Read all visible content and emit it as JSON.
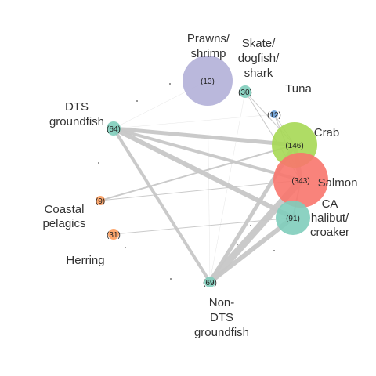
{
  "colors": {
    "purple": "#b3b0d8",
    "teal": "#7fcdbb",
    "green": "#a6d854",
    "salmon": "#f8766d",
    "orange": "#fc9d5e",
    "blue": "#6a9fd6",
    "edge": "#c8c8c8",
    "dot": "#777777"
  },
  "nodes": [
    {
      "id": "prawns",
      "label": [
        "Prawns/",
        "shrimp"
      ],
      "count": "(13)",
      "color": "purple"
    },
    {
      "id": "skate",
      "label": [
        "Skate/",
        "dogfish/",
        "shark"
      ],
      "count": "(30)",
      "color": "teal"
    },
    {
      "id": "tuna",
      "label": [
        "Tuna"
      ],
      "count": "(12)",
      "color": "blue"
    },
    {
      "id": "dts",
      "label": [
        "DTS",
        "groundfish"
      ],
      "count": "(64)",
      "color": "teal"
    },
    {
      "id": "crab",
      "label": [
        "Crab"
      ],
      "count": "(146)",
      "color": "green"
    },
    {
      "id": "salmon",
      "label": [
        "Salmon"
      ],
      "count": "(343)",
      "color": "salmon"
    },
    {
      "id": "ca",
      "label": [
        "CA",
        "halibut/",
        "croaker"
      ],
      "count": "(91)",
      "color": "teal"
    },
    {
      "id": "coastal",
      "label": [
        "Coastal",
        "pelagics"
      ],
      "count": "(9)",
      "color": "orange"
    },
    {
      "id": "unk31",
      "label": [],
      "count": "(31)",
      "color": "orange"
    },
    {
      "id": "herring",
      "label": [
        "Herring"
      ],
      "count": "",
      "color": "dot"
    },
    {
      "id": "nondts",
      "label": [
        "Non-",
        "DTS",
        "groundfish"
      ],
      "count": "(69)",
      "color": "teal"
    }
  ],
  "edges": [
    {
      "source": "nondts",
      "target": "salmon",
      "weight": 9
    },
    {
      "source": "nondts",
      "target": "ca",
      "weight": 6
    },
    {
      "source": "nondts",
      "target": "crab",
      "weight": 5
    },
    {
      "source": "dts",
      "target": "ca",
      "weight": 6
    },
    {
      "source": "dts",
      "target": "crab",
      "weight": 5
    },
    {
      "source": "dts",
      "target": "salmon",
      "weight": 4
    },
    {
      "source": "dts",
      "target": "nondts",
      "weight": 4
    },
    {
      "source": "crab",
      "target": "salmon",
      "weight": 6
    },
    {
      "source": "coastal",
      "target": "crab",
      "weight": 2
    },
    {
      "source": "coastal",
      "target": "salmon",
      "weight": 1
    },
    {
      "source": "unk31",
      "target": "ca",
      "weight": 1
    },
    {
      "source": "skate",
      "target": "salmon",
      "weight": 1
    },
    {
      "source": "skate",
      "target": "crab",
      "weight": 1
    },
    {
      "source": "tuna",
      "target": "salmon",
      "weight": 1
    },
    {
      "source": "tuna",
      "target": "crab",
      "weight": 1
    },
    {
      "source": "prawns",
      "target": "dts",
      "weight": 0.5
    },
    {
      "source": "prawns",
      "target": "nondts",
      "weight": 0.5
    },
    {
      "source": "dts",
      "target": "tuna",
      "weight": 0.5
    },
    {
      "source": "skate",
      "target": "nondts",
      "weight": 0.5
    },
    {
      "source": "salmon",
      "target": "ca",
      "weight": 2
    }
  ]
}
